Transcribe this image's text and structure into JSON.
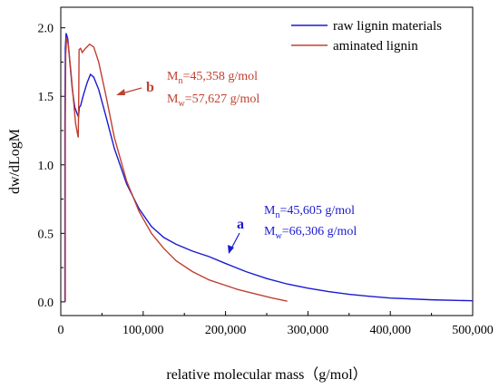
{
  "chart_data": {
    "type": "line",
    "title": "",
    "xlabel": "relative molecular mass（g/mol）",
    "ylabel": "dw/dLogM",
    "xlim": [
      0,
      500000
    ],
    "ylim": [
      -0.1,
      2.15
    ],
    "x_ticks": [
      0,
      100000,
      200000,
      300000,
      400000,
      500000
    ],
    "x_tick_labels": [
      "0",
      "100,000",
      "200,000",
      "300,000",
      "400,000",
      "500,000"
    ],
    "y_ticks": [
      0.0,
      0.5,
      1.0,
      1.5,
      2.0
    ],
    "y_tick_labels": [
      "0.0",
      "0.5",
      "1.0",
      "1.5",
      "2.0"
    ],
    "grid": false,
    "legend_position": "top-right",
    "series": [
      {
        "name": "raw lignin materials",
        "color": "#1a1ad0",
        "points": [
          [
            5000,
            0.0
          ],
          [
            5000,
            1.3
          ],
          [
            5500,
            1.85
          ],
          [
            6500,
            1.96
          ],
          [
            8500,
            1.92
          ],
          [
            11000,
            1.75
          ],
          [
            14000,
            1.55
          ],
          [
            17000,
            1.42
          ],
          [
            20000,
            1.37
          ],
          [
            21500,
            1.35
          ],
          [
            22500,
            1.42
          ],
          [
            24000,
            1.43
          ],
          [
            27000,
            1.5
          ],
          [
            32000,
            1.6
          ],
          [
            36000,
            1.66
          ],
          [
            40000,
            1.64
          ],
          [
            46000,
            1.55
          ],
          [
            55000,
            1.35
          ],
          [
            65000,
            1.12
          ],
          [
            80000,
            0.86
          ],
          [
            95000,
            0.68
          ],
          [
            110000,
            0.55
          ],
          [
            125000,
            0.47
          ],
          [
            140000,
            0.42
          ],
          [
            160000,
            0.37
          ],
          [
            180000,
            0.33
          ],
          [
            200000,
            0.28
          ],
          [
            225000,
            0.22
          ],
          [
            250000,
            0.17
          ],
          [
            275000,
            0.13
          ],
          [
            300000,
            0.1
          ],
          [
            325000,
            0.075
          ],
          [
            350000,
            0.055
          ],
          [
            375000,
            0.04
          ],
          [
            400000,
            0.028
          ],
          [
            450000,
            0.015
          ],
          [
            500000,
            0.008
          ]
        ]
      },
      {
        "name": "aminated lignin",
        "color": "#c04030",
        "points": [
          [
            5500,
            0.0
          ],
          [
            5500,
            1.3
          ],
          [
            6000,
            1.8
          ],
          [
            7000,
            1.93
          ],
          [
            9000,
            1.88
          ],
          [
            12000,
            1.7
          ],
          [
            15000,
            1.5
          ],
          [
            18000,
            1.3
          ],
          [
            20500,
            1.22
          ],
          [
            21200,
            1.2
          ],
          [
            21800,
            1.5
          ],
          [
            22200,
            1.84
          ],
          [
            24000,
            1.85
          ],
          [
            26000,
            1.82
          ],
          [
            30000,
            1.85
          ],
          [
            35000,
            1.88
          ],
          [
            40000,
            1.86
          ],
          [
            46000,
            1.75
          ],
          [
            55000,
            1.5
          ],
          [
            65000,
            1.2
          ],
          [
            80000,
            0.88
          ],
          [
            95000,
            0.66
          ],
          [
            110000,
            0.5
          ],
          [
            125000,
            0.39
          ],
          [
            140000,
            0.3
          ],
          [
            160000,
            0.22
          ],
          [
            180000,
            0.16
          ],
          [
            200000,
            0.12
          ],
          [
            215000,
            0.09
          ],
          [
            235000,
            0.06
          ],
          [
            255000,
            0.03
          ],
          [
            275000,
            0.005
          ]
        ]
      }
    ],
    "annotations": [
      {
        "label": "a",
        "color": "#1a1ad0",
        "arrow_to": [
          250000,
          0.28
        ],
        "lines": [
          {
            "main": "M",
            "sub": "n",
            "rest": "=45,605 g/mol"
          },
          {
            "main": "M",
            "sub": "w",
            "rest": "=66,306 g/mol"
          }
        ]
      },
      {
        "label": "b",
        "color": "#c04030",
        "arrow_to": [
          38000,
          1.55
        ],
        "lines": [
          {
            "main": "M",
            "sub": "n",
            "rest": "=45,358 g/mol"
          },
          {
            "main": "M",
            "sub": "w",
            "rest": "=57,627 g/mol"
          }
        ]
      }
    ]
  }
}
